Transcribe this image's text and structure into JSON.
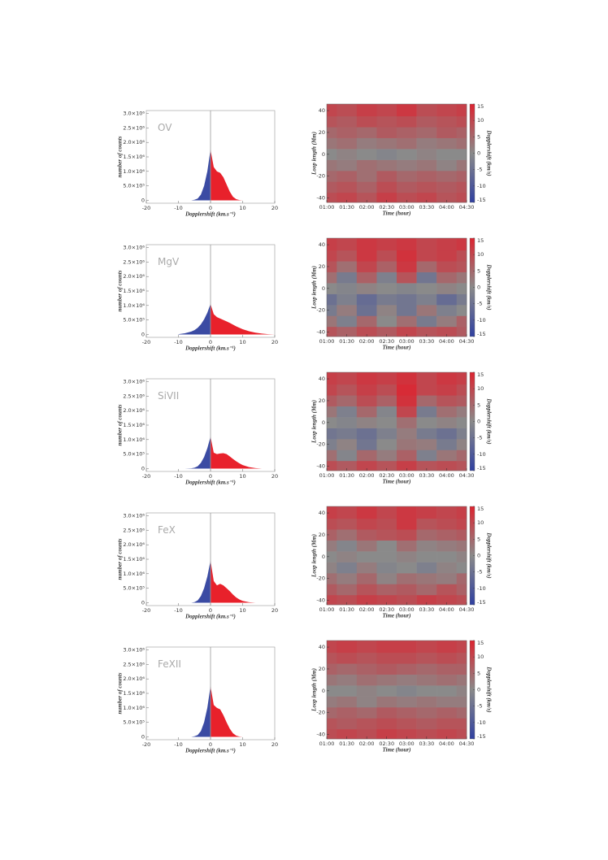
{
  "chart_data": [
    {
      "type": "area",
      "label": "OV",
      "x": [
        -10,
        -8,
        -6,
        -5,
        -4,
        -3,
        -2,
        -1,
        0,
        1,
        2,
        3,
        4,
        5,
        6,
        7,
        8,
        9,
        10,
        12,
        14,
        16,
        18,
        20
      ],
      "values": [
        0,
        0,
        0,
        20000,
        60000,
        200000,
        500000,
        1000000,
        1750000,
        1150000,
        1000000,
        950000,
        800000,
        550000,
        300000,
        120000,
        40000,
        10000,
        0,
        0,
        0,
        0,
        0,
        0
      ],
      "xlim": [
        -20,
        20
      ],
      "xticks": [
        -20,
        -10,
        0,
        10,
        20
      ],
      "ylim": [
        -100000,
        3100000
      ],
      "yticks": [
        0,
        {
          "value": 500000,
          "label": "5.0×10⁵"
        },
        {
          "value": 1000000,
          "label": "1.0×10⁶"
        },
        {
          "value": 1500000,
          "label": "1.5×10⁶"
        },
        {
          "value": 2000000,
          "label": "2.0×10⁶"
        },
        {
          "value": 2500000,
          "label": "2.5×10⁶"
        },
        {
          "value": 3000000,
          "label": "3.0×10⁶"
        }
      ],
      "xlabel": "Dopplershift (km.s⁻¹)",
      "ylabel": "number of counts",
      "color_negative": "#3b4ba3",
      "color_positive": "#e8212b",
      "zero_line": true
    },
    {
      "type": "heatmap",
      "x": [
        "01:00",
        "01:30",
        "02:00",
        "02:30",
        "03:00",
        "03:30",
        "04:00",
        "04:30"
      ],
      "y": [
        -40,
        -30,
        -20,
        -10,
        0,
        10,
        20,
        30,
        40
      ],
      "z": [
        [
          9,
          10,
          8,
          11,
          9,
          10,
          8,
          9
        ],
        [
          7,
          8,
          6,
          9,
          7,
          8,
          7,
          8
        ],
        [
          5,
          6,
          4,
          7,
          5,
          6,
          5,
          6
        ],
        [
          3,
          2,
          4,
          3,
          2,
          3,
          1,
          3
        ],
        [
          0,
          1,
          0,
          -1,
          0,
          1,
          0,
          0
        ],
        [
          3,
          4,
          2,
          3,
          4,
          2,
          3,
          4
        ],
        [
          5,
          6,
          5,
          7,
          6,
          5,
          7,
          6
        ],
        [
          8,
          7,
          9,
          8,
          9,
          7,
          8,
          9
        ],
        [
          10,
          9,
          11,
          10,
          12,
          9,
          10,
          11
        ]
      ],
      "ylim": [
        -44,
        46
      ],
      "yticks": [
        -40,
        -20,
        0,
        20,
        40
      ],
      "ylabel": "Loop length (Mm)",
      "xlabel": "Time (hour)",
      "zlim": [
        -15,
        15
      ],
      "zticks": [
        15,
        10,
        5,
        0,
        -5,
        -10,
        -15
      ],
      "zlabel": "Dopplershift (km/s)",
      "colors": [
        "#3040a0",
        "#8a8a8a",
        "#dc2430"
      ]
    },
    {
      "type": "area",
      "label": "MgV",
      "x": [
        -10,
        -8,
        -6,
        -5,
        -4,
        -3,
        -2,
        -1,
        0,
        1,
        2,
        3,
        4,
        5,
        6,
        7,
        8,
        9,
        10,
        12,
        14,
        16,
        18,
        20
      ],
      "values": [
        10000,
        40000,
        100000,
        150000,
        230000,
        350000,
        520000,
        750000,
        1050000,
        700000,
        600000,
        550000,
        500000,
        450000,
        400000,
        340000,
        280000,
        230000,
        180000,
        110000,
        60000,
        30000,
        10000,
        0
      ],
      "xlim": [
        -20,
        20
      ],
      "xticks": [
        -20,
        -10,
        0,
        10,
        20
      ],
      "ylim": [
        -100000,
        3100000
      ],
      "yticks": [
        0,
        {
          "value": 500000,
          "label": "5.0×10⁵"
        },
        {
          "value": 1000000,
          "label": "1.0×10⁶"
        },
        {
          "value": 1500000,
          "label": "1.5×10⁶"
        },
        {
          "value": 2000000,
          "label": "2.0×10⁶"
        },
        {
          "value": 2500000,
          "label": "2.5×10⁶"
        },
        {
          "value": 3000000,
          "label": "3.0×10⁶"
        }
      ],
      "xlabel": "Dopplershift (km.s⁻¹)",
      "ylabel": "number of counts",
      "color_negative": "#3b4ba3",
      "color_positive": "#e8212b",
      "zero_line": true
    },
    {
      "type": "heatmap",
      "x": [
        "01:00",
        "01:30",
        "02:00",
        "02:30",
        "03:00",
        "03:30",
        "04:00",
        "04:30"
      ],
      "y": [
        -40,
        -30,
        -20,
        -10,
        0,
        10,
        20,
        30,
        40
      ],
      "z": [
        [
          8,
          6,
          9,
          7,
          10,
          8,
          9,
          7
        ],
        [
          3,
          -2,
          5,
          0,
          4,
          -3,
          2,
          6
        ],
        [
          -3,
          2,
          -5,
          1,
          -4,
          3,
          -2,
          0
        ],
        [
          -5,
          -2,
          -6,
          -3,
          -4,
          -2,
          -6,
          -3
        ],
        [
          0,
          -1,
          1,
          0,
          -1,
          0,
          1,
          0
        ],
        [
          4,
          -3,
          6,
          -2,
          8,
          -4,
          5,
          3
        ],
        [
          8,
          4,
          10,
          6,
          12,
          5,
          9,
          8
        ],
        [
          10,
          8,
          12,
          9,
          13,
          10,
          11,
          9
        ],
        [
          11,
          10,
          12,
          11,
          12,
          10,
          11,
          12
        ]
      ],
      "ylim": [
        -44,
        46
      ],
      "yticks": [
        -40,
        -20,
        0,
        20,
        40
      ],
      "ylabel": "Loop length (Mm)",
      "xlabel": "Time (hour)",
      "zlim": [
        -15,
        15
      ],
      "zticks": [
        15,
        10,
        5,
        0,
        -5,
        -10,
        -15
      ],
      "zlabel": "Dopplershift (km/s)",
      "colors": [
        "#3040a0",
        "#8a8a8a",
        "#dc2430"
      ]
    },
    {
      "type": "area",
      "label": "SiVII",
      "x": [
        -10,
        -8,
        -6,
        -5,
        -4,
        -3,
        -2,
        -1,
        0,
        1,
        2,
        3,
        4,
        5,
        6,
        7,
        8,
        9,
        10,
        12,
        14,
        16,
        18,
        20
      ],
      "values": [
        0,
        0,
        10000,
        30000,
        80000,
        200000,
        400000,
        700000,
        1100000,
        550000,
        500000,
        520000,
        530000,
        500000,
        420000,
        330000,
        250000,
        180000,
        120000,
        50000,
        15000,
        0,
        0,
        0
      ],
      "xlim": [
        -20,
        20
      ],
      "xticks": [
        -20,
        -10,
        0,
        10,
        20
      ],
      "ylim": [
        -100000,
        3100000
      ],
      "yticks": [
        0,
        {
          "value": 500000,
          "label": "5.0×10⁵"
        },
        {
          "value": 1000000,
          "label": "1.0×10⁶"
        },
        {
          "value": 1500000,
          "label": "1.5×10⁶"
        },
        {
          "value": 2000000,
          "label": "2.0×10⁶"
        },
        {
          "value": 2500000,
          "label": "2.5×10⁶"
        },
        {
          "value": 3000000,
          "label": "3.0×10⁶"
        }
      ],
      "xlabel": "Dopplershift (km.s⁻¹)",
      "ylabel": "number of counts",
      "color_negative": "#3b4ba3",
      "color_positive": "#e8212b",
      "zero_line": true
    },
    {
      "type": "heatmap",
      "x": [
        "01:00",
        "01:30",
        "02:00",
        "02:30",
        "03:00",
        "03:30",
        "04:00",
        "04:30"
      ],
      "y": [
        -40,
        -30,
        -20,
        -10,
        0,
        10,
        20,
        30,
        40
      ],
      "z": [
        [
          9,
          7,
          10,
          8,
          11,
          8,
          9,
          8
        ],
        [
          4,
          -1,
          5,
          2,
          6,
          -2,
          3,
          5
        ],
        [
          -2,
          1,
          -4,
          0,
          3,
          2,
          -3,
          1
        ],
        [
          -4,
          -3,
          -5,
          -2,
          2,
          -3,
          -5,
          -2
        ],
        [
          0,
          -1,
          1,
          0,
          4,
          0,
          1,
          0
        ],
        [
          3,
          -2,
          5,
          -1,
          10,
          -3,
          4,
          2
        ],
        [
          7,
          5,
          9,
          6,
          13,
          5,
          8,
          7
        ],
        [
          10,
          8,
          11,
          9,
          14,
          10,
          11,
          9
        ],
        [
          11,
          10,
          12,
          11,
          13,
          10,
          12,
          11
        ]
      ],
      "ylim": [
        -44,
        46
      ],
      "yticks": [
        -40,
        -20,
        0,
        20,
        40
      ],
      "ylabel": "Loop length (Mm)",
      "xlabel": "Time (hour)",
      "zlim": [
        -15,
        15
      ],
      "zticks": [
        15,
        10,
        5,
        0,
        -5,
        -10,
        -15
      ],
      "zlabel": "Dopplershift (km/s)",
      "colors": [
        "#3040a0",
        "#8a8a8a",
        "#dc2430"
      ]
    },
    {
      "type": "area",
      "label": "FeX",
      "x": [
        -10,
        -8,
        -6,
        -5,
        -4,
        -3,
        -2,
        -1,
        0,
        1,
        2,
        3,
        4,
        5,
        6,
        7,
        8,
        9,
        10,
        12,
        14,
        16,
        18,
        20
      ],
      "values": [
        0,
        0,
        0,
        20000,
        80000,
        230000,
        500000,
        900000,
        1450000,
        750000,
        600000,
        650000,
        600000,
        500000,
        400000,
        280000,
        180000,
        110000,
        60000,
        15000,
        0,
        0,
        0,
        0
      ],
      "xlim": [
        -20,
        20
      ],
      "xticks": [
        -20,
        -10,
        0,
        10,
        20
      ],
      "ylim": [
        -100000,
        3100000
      ],
      "yticks": [
        0,
        {
          "value": 500000,
          "label": "5.0×10⁵"
        },
        {
          "value": 1000000,
          "label": "1.0×10⁶"
        },
        {
          "value": 1500000,
          "label": "1.5×10⁶"
        },
        {
          "value": 2000000,
          "label": "2.0×10⁶"
        },
        {
          "value": 2500000,
          "label": "2.5×10⁶"
        },
        {
          "value": 3000000,
          "label": "3.0×10⁶"
        }
      ],
      "xlabel": "Dopplershift (km.s⁻¹)",
      "ylabel": "number of counts",
      "color_negative": "#3b4ba3",
      "color_positive": "#e8212b",
      "zero_line": true
    },
    {
      "type": "heatmap",
      "x": [
        "01:00",
        "01:30",
        "02:00",
        "02:30",
        "03:00",
        "03:30",
        "04:00",
        "04:30"
      ],
      "y": [
        -40,
        -30,
        -20,
        -10,
        0,
        10,
        20,
        30,
        40
      ],
      "z": [
        [
          10,
          9,
          11,
          10,
          9,
          11,
          10,
          9
        ],
        [
          7,
          5,
          8,
          6,
          7,
          5,
          8,
          6
        ],
        [
          4,
          2,
          5,
          1,
          4,
          3,
          2,
          5
        ],
        [
          1,
          -2,
          2,
          -1,
          0,
          -2,
          1,
          0
        ],
        [
          0,
          1,
          0,
          0,
          1,
          0,
          0,
          1
        ],
        [
          2,
          -1,
          3,
          0,
          4,
          1,
          2,
          3
        ],
        [
          6,
          4,
          7,
          8,
          9,
          5,
          6,
          7
        ],
        [
          9,
          8,
          10,
          9,
          12,
          8,
          9,
          10
        ],
        [
          11,
          10,
          12,
          10,
          12,
          11,
          10,
          11
        ]
      ],
      "ylim": [
        -44,
        46
      ],
      "yticks": [
        -40,
        -20,
        0,
        20,
        40
      ],
      "ylabel": "Loop length (Mm)",
      "xlabel": "Time (hour)",
      "zlim": [
        -15,
        15
      ],
      "zticks": [
        15,
        10,
        5,
        0,
        -5,
        -10,
        -15
      ],
      "zlabel": "Dopplershift (km/s)",
      "colors": [
        "#3040a0",
        "#8a8a8a",
        "#dc2430"
      ]
    },
    {
      "type": "area",
      "label": "FeXII",
      "x": [
        -10,
        -8,
        -6,
        -5,
        -4,
        -3,
        -2,
        -1,
        0,
        1,
        2,
        3,
        4,
        5,
        6,
        7,
        8,
        9,
        10,
        12,
        14,
        16,
        18,
        20
      ],
      "values": [
        0,
        0,
        0,
        20000,
        60000,
        200000,
        500000,
        1000000,
        1750000,
        1100000,
        1000000,
        950000,
        750000,
        500000,
        280000,
        120000,
        40000,
        10000,
        0,
        0,
        0,
        0,
        0,
        0
      ],
      "xlim": [
        -20,
        20
      ],
      "xticks": [
        -20,
        -10,
        0,
        10,
        20
      ],
      "ylim": [
        -100000,
        3100000
      ],
      "yticks": [
        0,
        {
          "value": 500000,
          "label": "5.0×10⁵"
        },
        {
          "value": 1000000,
          "label": "1.0×10⁶"
        },
        {
          "value": 1500000,
          "label": "1.5×10⁶"
        },
        {
          "value": 2000000,
          "label": "2.0×10⁶"
        },
        {
          "value": 2500000,
          "label": "2.5×10⁶"
        },
        {
          "value": 3000000,
          "label": "3.0×10⁶"
        }
      ],
      "xlabel": "Dopplershift (km.s⁻¹)",
      "ylabel": "number of counts",
      "color_negative": "#3b4ba3",
      "color_positive": "#e8212b",
      "zero_line": true
    },
    {
      "type": "heatmap",
      "x": [
        "01:00",
        "01:30",
        "02:00",
        "02:30",
        "03:00",
        "03:30",
        "04:00",
        "04:30"
      ],
      "y": [
        -40,
        -30,
        -20,
        -10,
        0,
        10,
        20,
        30,
        40
      ],
      "z": [
        [
          9,
          10,
          9,
          11,
          10,
          9,
          10,
          9
        ],
        [
          8,
          7,
          8,
          9,
          8,
          7,
          8,
          8
        ],
        [
          5,
          6,
          5,
          7,
          6,
          5,
          6,
          5
        ],
        [
          2,
          3,
          1,
          3,
          2,
          3,
          2,
          2
        ],
        [
          0,
          0,
          1,
          0,
          -1,
          0,
          0,
          1
        ],
        [
          3,
          2,
          4,
          3,
          2,
          3,
          4,
          3
        ],
        [
          6,
          5,
          6,
          7,
          6,
          5,
          6,
          6
        ],
        [
          8,
          9,
          8,
          9,
          9,
          8,
          9,
          8
        ],
        [
          10,
          11,
          10,
          11,
          11,
          10,
          11,
          10
        ]
      ],
      "ylim": [
        -44,
        46
      ],
      "yticks": [
        -40,
        -20,
        0,
        20,
        40
      ],
      "ylabel": "Loop length (Mm)",
      "xlabel": "Time (hour)",
      "zlim": [
        -15,
        15
      ],
      "zticks": [
        15,
        10,
        5,
        0,
        -5,
        -10,
        -15
      ],
      "zlabel": "Dopplershift (km/s)",
      "colors": [
        "#3040a0",
        "#8a8a8a",
        "#dc2430"
      ]
    }
  ]
}
